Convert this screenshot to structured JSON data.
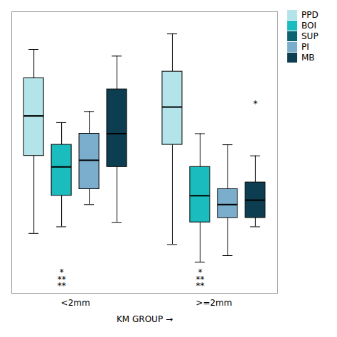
{
  "chart_data": {
    "type": "box",
    "xlabel": "KM GROUP",
    "categories": [
      "<2mm",
      ">=2mm"
    ],
    "series": [
      {
        "name": "PPD",
        "color": "#b2e4ea",
        "values": [
          {
            "q1": 5.0,
            "median": 6.8,
            "q3": 8.5,
            "whislo": 1.5,
            "whishi": 9.8
          },
          {
            "q1": 5.5,
            "median": 7.2,
            "q3": 8.8,
            "whislo": 1.0,
            "whishi": 10.5
          }
        ]
      },
      {
        "name": "BOI",
        "color": "#1bbcbe",
        "values": [
          {
            "q1": 3.2,
            "median": 4.5,
            "q3": 5.5,
            "whislo": 1.8,
            "whishi": 6.5
          },
          {
            "q1": 2.0,
            "median": 3.2,
            "q3": 4.5,
            "whislo": 0.2,
            "whishi": 6.0
          }
        ]
      },
      {
        "name": "SUP",
        "color": "#0c6472",
        "values": [
          null,
          null
        ]
      },
      {
        "name": "PI",
        "color": "#7aaecc",
        "values": [
          {
            "q1": 3.5,
            "median": 4.8,
            "q3": 6.0,
            "whislo": 2.8,
            "whishi": 7.0
          },
          {
            "q1": 2.2,
            "median": 2.8,
            "q3": 3.5,
            "whislo": 0.5,
            "whishi": 5.5
          }
        ]
      },
      {
        "name": "MB",
        "color": "#0d3d50",
        "values": [
          {
            "q1": 4.5,
            "median": 6.0,
            "q3": 8.0,
            "whislo": 2.0,
            "whishi": 9.5
          },
          {
            "q1": 2.2,
            "median": 3.0,
            "q3": 3.8,
            "whislo": 1.8,
            "whishi": 5.0
          }
        ]
      }
    ],
    "ylim": [
      -1.2,
      11.5
    ],
    "tick_labels": "x",
    "grid": false,
    "legend": "right",
    "annotations": [
      {
        "text": "*",
        "category": "<2mm",
        "series": "BOI",
        "y": -0.1
      },
      {
        "text": "**",
        "category": "<2mm",
        "series": "BOI",
        "y": -0.42
      },
      {
        "text": "**",
        "category": "<2mm",
        "series": "BOI",
        "y": -0.72
      },
      {
        "text": "*",
        "category": ">=2mm",
        "series": "BOI",
        "y": -0.1
      },
      {
        "text": "**",
        "category": ">=2mm",
        "series": "BOI",
        "y": -0.42
      },
      {
        "text": "**",
        "category": ">=2mm",
        "series": "BOI",
        "y": -0.72
      },
      {
        "text": "*",
        "category": ">=2mm",
        "series": "MB",
        "y": 7.5
      }
    ]
  }
}
